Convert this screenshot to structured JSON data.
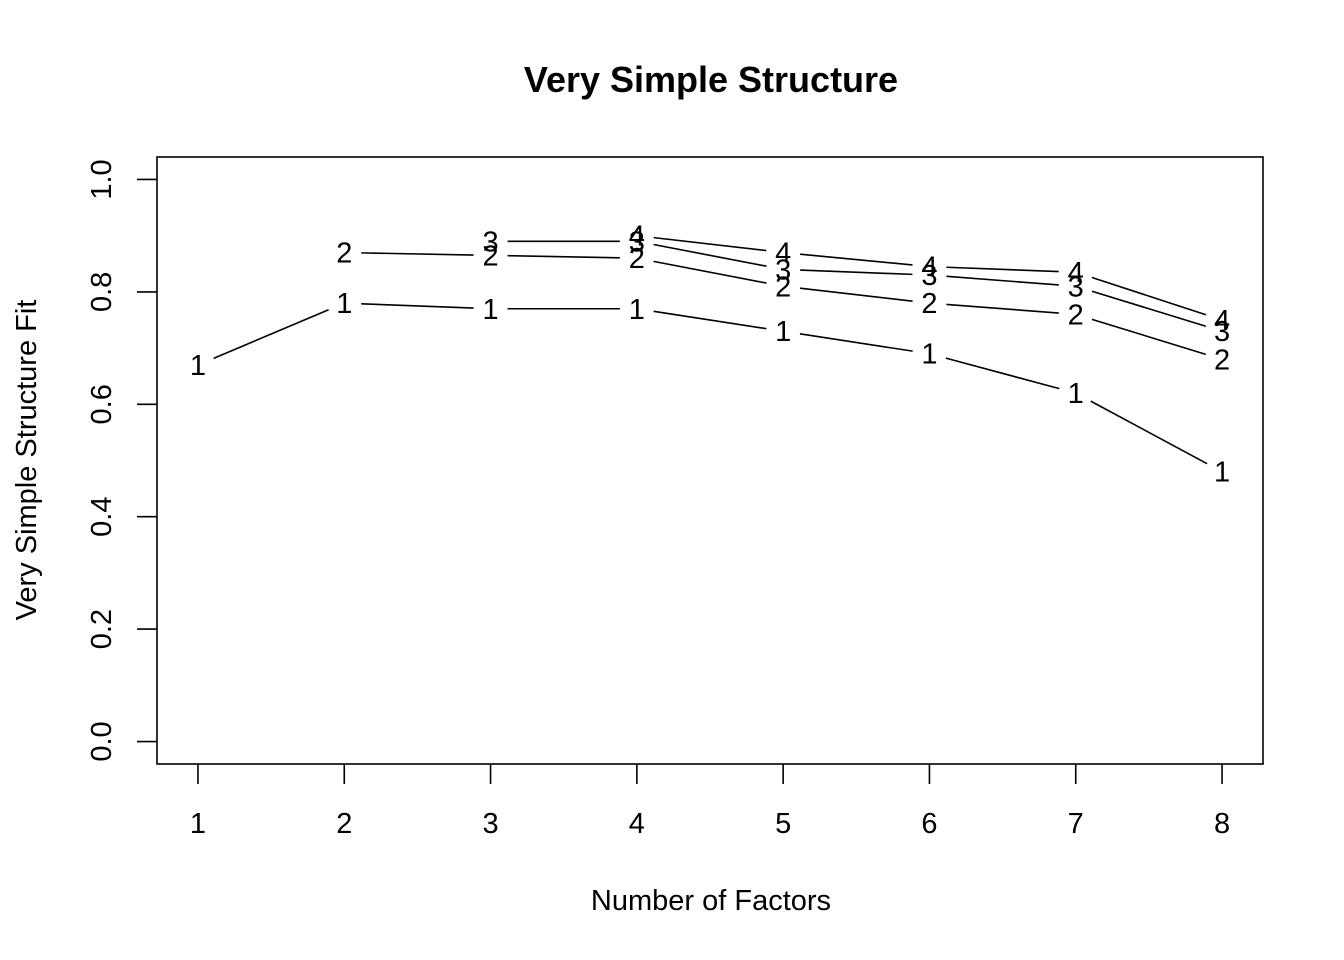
{
  "chart_data": {
    "type": "line",
    "title": "Very Simple Structure",
    "xlabel": "Number of Factors",
    "ylabel": "Very Simple Structure Fit",
    "x": [
      1,
      2,
      3,
      4,
      5,
      6,
      7,
      8
    ],
    "xlim": [
      0.72,
      8.28
    ],
    "ylim": [
      -0.04,
      1.04
    ],
    "x_ticks": [
      "1",
      "2",
      "3",
      "4",
      "5",
      "6",
      "7",
      "8"
    ],
    "y_ticks": [
      "0.0",
      "0.2",
      "0.4",
      "0.6",
      "0.8",
      "1.0"
    ],
    "grid": false,
    "series": [
      {
        "name": "1",
        "x": [
          1,
          2,
          3,
          4,
          5,
          6,
          7,
          8
        ],
        "values": [
          0.67,
          0.78,
          0.77,
          0.77,
          0.73,
          0.69,
          0.62,
          0.48
        ]
      },
      {
        "name": "2",
        "x": [
          2,
          3,
          4,
          5,
          6,
          7,
          8
        ],
        "values": [
          0.87,
          0.865,
          0.86,
          0.81,
          0.78,
          0.76,
          0.68
        ]
      },
      {
        "name": "3",
        "x": [
          3,
          4,
          5,
          6,
          7,
          8
        ],
        "values": [
          0.89,
          0.89,
          0.84,
          0.83,
          0.81,
          0.73
        ]
      },
      {
        "name": "4",
        "x": [
          4,
          5,
          6,
          7,
          8
        ],
        "values": [
          0.9,
          0.87,
          0.845,
          0.835,
          0.75
        ]
      }
    ]
  }
}
